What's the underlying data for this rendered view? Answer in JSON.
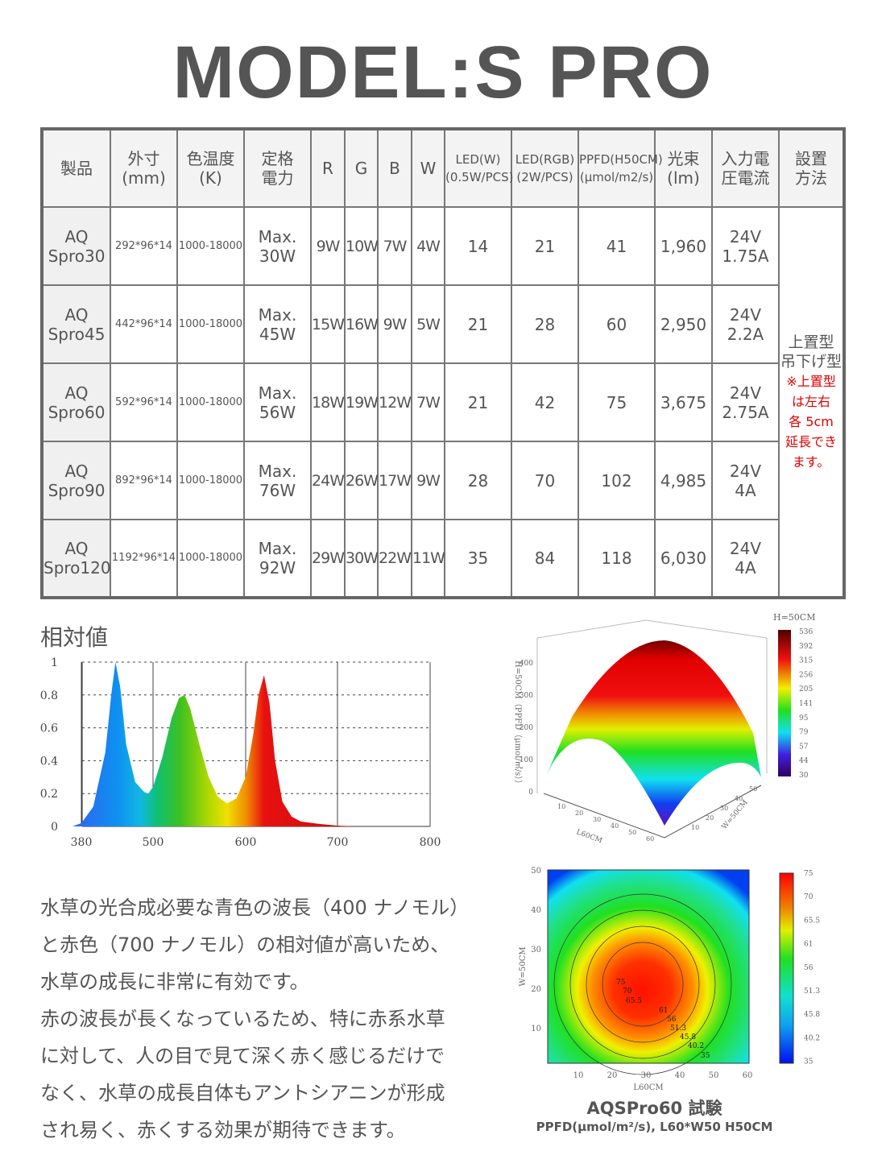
{
  "title": "MODEL:S PRO",
  "table": {
    "headers": [
      [
        "製品"
      ],
      [
        "外寸",
        "(mm)"
      ],
      [
        "色温度",
        "(K)"
      ],
      [
        "定格",
        "電力"
      ],
      [
        "R"
      ],
      [
        "G"
      ],
      [
        "B"
      ],
      [
        "W"
      ],
      [
        "LED(W)",
        "(0.5W/PCS)"
      ],
      [
        "LED(RGB)",
        "(2W/PCS)"
      ],
      [
        "PPFD(H50CM)",
        "(μmol/m2/s)"
      ],
      [
        "光束",
        "(lm)"
      ],
      [
        "入力電",
        "圧電流"
      ],
      [
        "設置",
        "方法"
      ]
    ],
    "rows": [
      {
        "name": [
          "AQ",
          "Spro30"
        ],
        "size": "292*96*14",
        "cct": "1000-18000",
        "power": [
          "Max.",
          "30W"
        ],
        "r": "9W",
        "g": "10W",
        "b": "7W",
        "w": "4W",
        "led_w": "14",
        "led_rgb": "21",
        "ppfd": "41",
        "lm": "1,960",
        "input": [
          "24V",
          "1.75A"
        ]
      },
      {
        "name": [
          "AQ",
          "Spro45"
        ],
        "size": "442*96*14",
        "cct": "1000-18000",
        "power": [
          "Max.",
          "45W"
        ],
        "r": "15W",
        "g": "16W",
        "b": "9W",
        "w": "5W",
        "led_w": "21",
        "led_rgb": "28",
        "ppfd": "60",
        "lm": "2,950",
        "input": [
          "24V",
          "2.2A"
        ]
      },
      {
        "name": [
          "AQ",
          "Spro60"
        ],
        "size": "592*96*14",
        "cct": "1000-18000",
        "power": [
          "Max.",
          "56W"
        ],
        "r": "18W",
        "g": "19W",
        "b": "12W",
        "w": "7W",
        "led_w": "21",
        "led_rgb": "42",
        "ppfd": "75",
        "lm": "3,675",
        "input": [
          "24V",
          "2.75A"
        ]
      },
      {
        "name": [
          "AQ",
          "Spro90"
        ],
        "size": "892*96*14",
        "cct": "1000-18000",
        "power": [
          "Max.",
          "76W"
        ],
        "r": "24W",
        "g": "26W",
        "b": "17W",
        "w": "9W",
        "led_w": "28",
        "led_rgb": "70",
        "ppfd": "102",
        "lm": "4,985",
        "input": [
          "24V",
          "4A"
        ]
      },
      {
        "name": [
          "AQ",
          "Spro120"
        ],
        "size": "1192*96*14",
        "cct": "1000-18000",
        "power": [
          "Max.",
          "92W"
        ],
        "r": "29W",
        "g": "30W",
        "b": "22W",
        "w": "11W",
        "led_w": "35",
        "led_rgb": "84",
        "ppfd": "118",
        "lm": "6,030",
        "input": [
          "24V",
          "4A"
        ]
      }
    ],
    "install": {
      "lines": [
        "上置型",
        "吊下げ型"
      ],
      "note": [
        "※上置型",
        "は左右",
        "各 5cm",
        "延長でき",
        "ます。"
      ],
      "note_color": "#e00000"
    }
  },
  "chart_data": [
    {
      "type": "area",
      "title": "相対値",
      "xticks": [
        380,
        500,
        600,
        700,
        800
      ],
      "yticks": [
        0,
        0.2,
        0.4,
        0.6,
        0.8,
        1.0
      ],
      "ylim": [
        0,
        1.0
      ],
      "grid": true,
      "x": [
        365,
        380,
        400,
        420,
        430,
        437,
        445,
        455,
        470,
        485,
        492,
        500,
        510,
        520,
        528,
        534,
        540,
        550,
        560,
        570,
        580,
        590,
        600,
        608,
        614,
        620,
        626,
        632,
        640,
        650,
        660,
        680,
        700,
        720
      ],
      "y": [
        0,
        0.02,
        0.12,
        0.45,
        0.8,
        1.0,
        0.85,
        0.5,
        0.27,
        0.21,
        0.2,
        0.24,
        0.42,
        0.66,
        0.78,
        0.8,
        0.72,
        0.5,
        0.3,
        0.18,
        0.14,
        0.17,
        0.3,
        0.55,
        0.8,
        0.92,
        0.75,
        0.4,
        0.15,
        0.06,
        0.03,
        0.015,
        0.005,
        0
      ]
    },
    {
      "type": "surface",
      "label": "H=50CM",
      "zlabel": "H=50CM（PPFD（μmol/㎡/s））",
      "xlabel": "L60CM",
      "ylabel": "W=50CM",
      "zticks": [
        "0",
        "100",
        "200",
        "300",
        "400"
      ],
      "xticks": [
        "10",
        "20",
        "30",
        "40",
        "50",
        "60"
      ],
      "yticks": [
        "10",
        "20",
        "30",
        "40",
        "50"
      ],
      "colorbar": [
        "536",
        "392",
        "315",
        "256",
        "205",
        "141",
        "95",
        "79",
        "57",
        "44",
        "30"
      ]
    },
    {
      "type": "heatmap",
      "xlabel": "L60CM",
      "ylabel": "W=50CM",
      "xticks": [
        "10",
        "20",
        "30",
        "40",
        "50",
        "60"
      ],
      "yticks": [
        "10",
        "20",
        "30",
        "40",
        "50"
      ],
      "colorbar": [
        "75",
        "70",
        "65.5",
        "61",
        "56",
        "51.3",
        "45.8",
        "40.2",
        "35"
      ],
      "contour_labels": [
        "75",
        "70",
        "65.5",
        "61",
        "56",
        "51.3",
        "45.8",
        "40.2",
        "35"
      ]
    }
  ],
  "description": [
    "水草の光合成必要な青色の波長（400 ナノモル）",
    "と赤色（700 ナノモル）の相対値が高いため、",
    "水草の成長に非常に有効です。",
    "赤の波長が長くなっているため、特に赤系水草",
    "に対して、人の目で見て深く赤く感じるだけで",
    "なく、水草の成長自体もアントシアニンが形成",
    "され易く、赤くする効果が期待できます。"
  ],
  "caption": {
    "title": "AQSPro60 試験",
    "subtitle": "PPFD(μmol/m²/s), L60*W50 H50CM"
  }
}
